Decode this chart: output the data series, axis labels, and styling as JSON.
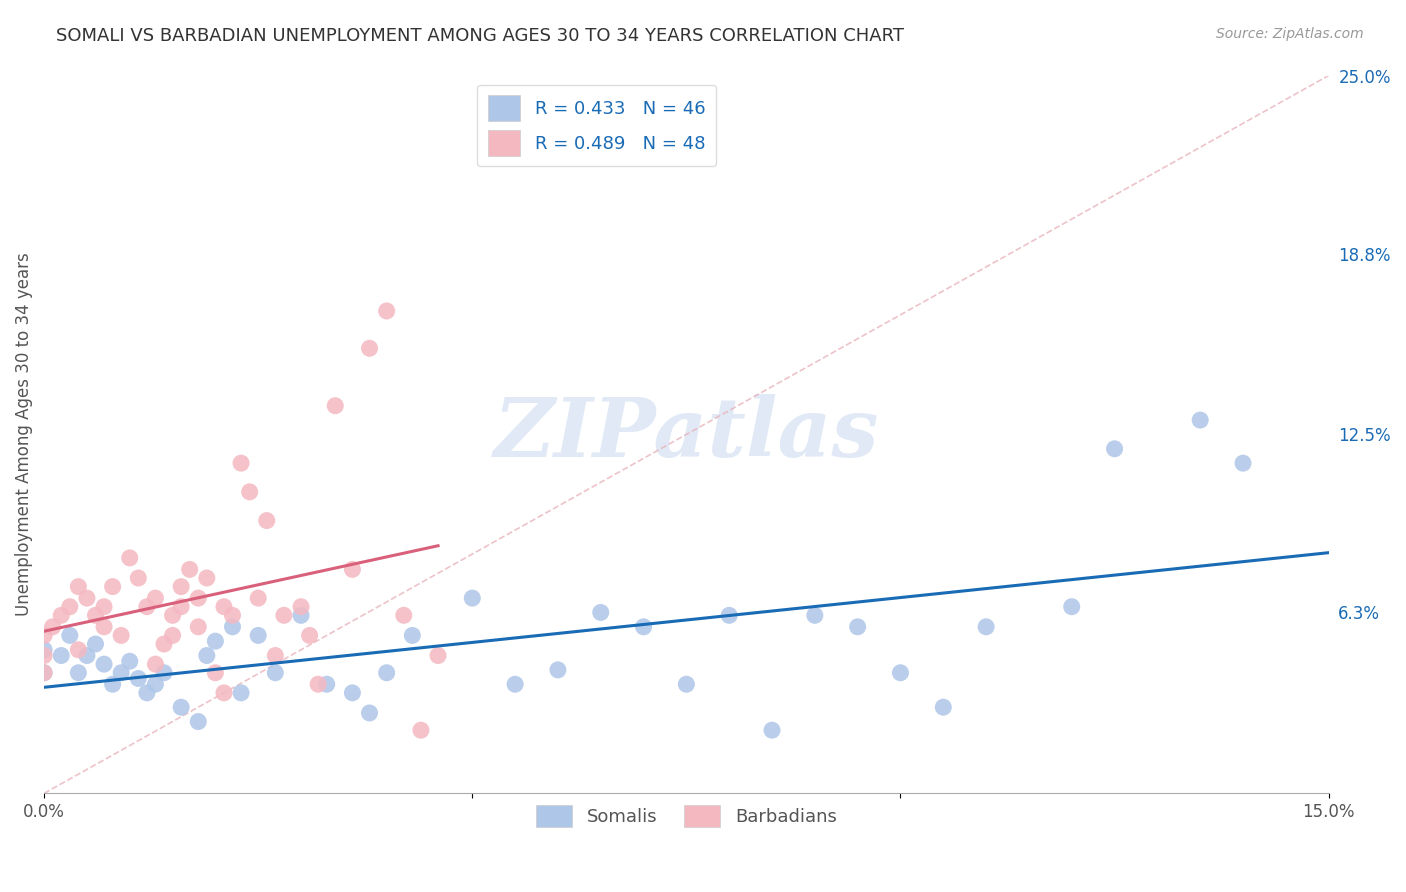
{
  "title": "SOMALI VS BARBADIAN UNEMPLOYMENT AMONG AGES 30 TO 34 YEARS CORRELATION CHART",
  "source": "Source: ZipAtlas.com",
  "ylabel": "Unemployment Among Ages 30 to 34 years",
  "xlim": [
    0.0,
    0.15
  ],
  "ylim": [
    0.0,
    0.25
  ],
  "y_tick_labels_right": [
    "25.0%",
    "18.8%",
    "12.5%",
    "6.3%",
    ""
  ],
  "y_tick_positions_right": [
    0.25,
    0.188,
    0.125,
    0.063,
    0.0
  ],
  "R_somali": 0.433,
  "N_somali": 46,
  "R_barbadian": 0.489,
  "N_barbadian": 48,
  "somali_color": "#aec6e8",
  "barbadian_color": "#f4b8c1",
  "somali_line_color": "#1a6bb5",
  "barbadian_line_color": "#d9607a",
  "diagonal_color": "#e8b4bc",
  "background_color": "#ffffff",
  "grid_color": "#cccccc",
  "watermark": "ZIPatlas",
  "somali_x": [
    0.0,
    0.0,
    0.002,
    0.003,
    0.004,
    0.005,
    0.006,
    0.007,
    0.008,
    0.009,
    0.01,
    0.011,
    0.012,
    0.013,
    0.014,
    0.016,
    0.018,
    0.019,
    0.02,
    0.022,
    0.023,
    0.025,
    0.027,
    0.03,
    0.033,
    0.036,
    0.038,
    0.04,
    0.043,
    0.05,
    0.055,
    0.06,
    0.065,
    0.07,
    0.075,
    0.08,
    0.085,
    0.09,
    0.095,
    0.1,
    0.105,
    0.11,
    0.12,
    0.125,
    0.135,
    0.14
  ],
  "somali_y": [
    0.042,
    0.05,
    0.048,
    0.055,
    0.042,
    0.048,
    0.052,
    0.045,
    0.038,
    0.042,
    0.046,
    0.04,
    0.035,
    0.038,
    0.042,
    0.03,
    0.025,
    0.048,
    0.053,
    0.058,
    0.035,
    0.055,
    0.042,
    0.062,
    0.038,
    0.035,
    0.028,
    0.042,
    0.055,
    0.068,
    0.038,
    0.043,
    0.063,
    0.058,
    0.038,
    0.062,
    0.022,
    0.062,
    0.058,
    0.042,
    0.03,
    0.058,
    0.065,
    0.12,
    0.13,
    0.115
  ],
  "barbadian_x": [
    0.0,
    0.0,
    0.0,
    0.001,
    0.002,
    0.003,
    0.004,
    0.004,
    0.005,
    0.006,
    0.007,
    0.007,
    0.008,
    0.009,
    0.01,
    0.011,
    0.012,
    0.013,
    0.013,
    0.014,
    0.015,
    0.015,
    0.016,
    0.016,
    0.017,
    0.018,
    0.018,
    0.019,
    0.02,
    0.021,
    0.021,
    0.022,
    0.023,
    0.024,
    0.025,
    0.026,
    0.027,
    0.028,
    0.03,
    0.031,
    0.032,
    0.034,
    0.036,
    0.038,
    0.04,
    0.042,
    0.044,
    0.046
  ],
  "barbadian_y": [
    0.042,
    0.048,
    0.055,
    0.058,
    0.062,
    0.065,
    0.072,
    0.05,
    0.068,
    0.062,
    0.058,
    0.065,
    0.072,
    0.055,
    0.082,
    0.075,
    0.065,
    0.045,
    0.068,
    0.052,
    0.062,
    0.055,
    0.072,
    0.065,
    0.078,
    0.058,
    0.068,
    0.075,
    0.042,
    0.065,
    0.035,
    0.062,
    0.115,
    0.105,
    0.068,
    0.095,
    0.048,
    0.062,
    0.065,
    0.055,
    0.038,
    0.135,
    0.078,
    0.155,
    0.168,
    0.062,
    0.022,
    0.048
  ]
}
